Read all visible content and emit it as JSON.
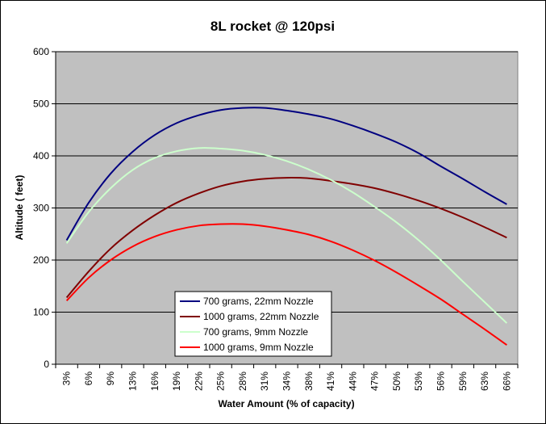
{
  "chart_data": {
    "type": "line",
    "title": "8L rocket @ 120psi",
    "xlabel": "Water Amount (% of capacity)",
    "ylabel": "Altitude ( feet)",
    "ylim": [
      0,
      600
    ],
    "yticks": [
      0,
      100,
      200,
      300,
      400,
      500,
      600
    ],
    "categories": [
      "3%",
      "6%",
      "9%",
      "13%",
      "16%",
      "19%",
      "22%",
      "25%",
      "28%",
      "31%",
      "34%",
      "38%",
      "41%",
      "44%",
      "47%",
      "50%",
      "53%",
      "56%",
      "59%",
      "63%",
      "66%"
    ],
    "grid": "horizontal",
    "legend_position": "bottom-left",
    "plot_background": "#c0c0c0",
    "series": [
      {
        "name": "700 grams, 22mm Nozzle",
        "color": "#000080",
        "values": [
          238,
          310,
          366,
          408,
          440,
          463,
          478,
          488,
          492,
          492,
          487,
          480,
          471,
          458,
          443,
          426,
          405,
          380,
          356,
          331,
          307
        ]
      },
      {
        "name": "1000 grams, 22mm Nozzle",
        "color": "#800000",
        "values": [
          128,
          178,
          222,
          257,
          286,
          310,
          328,
          342,
          351,
          356,
          358,
          357,
          352,
          346,
          338,
          327,
          314,
          299,
          282,
          263,
          243
        ]
      },
      {
        "name": "700 grams, 9mm Nozzle",
        "color": "#ccffcc",
        "values": [
          232,
          292,
          338,
          373,
          396,
          409,
          415,
          414,
          410,
          402,
          390,
          374,
          354,
          330,
          302,
          272,
          238,
          200,
          159,
          119,
          79
        ]
      },
      {
        "name": "1000 grams, 9mm Nozzle",
        "color": "#ff0000",
        "values": [
          122,
          166,
          200,
          226,
          245,
          258,
          266,
          269,
          269,
          265,
          258,
          249,
          236,
          219,
          199,
          176,
          151,
          125,
          96,
          67,
          37
        ]
      }
    ]
  }
}
